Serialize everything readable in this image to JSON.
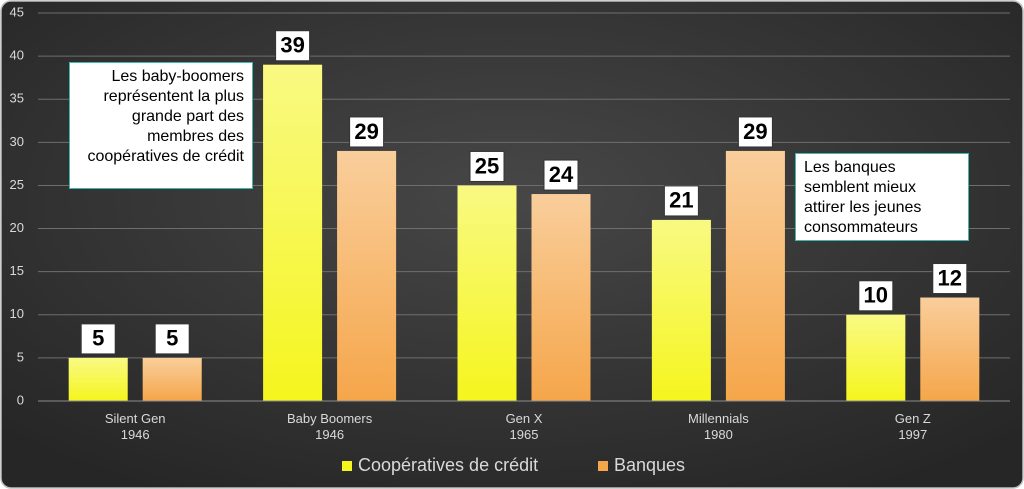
{
  "chart_data": {
    "type": "bar",
    "categories": [
      "Silent Gen\n1946",
      "Baby Boomers\n1946",
      "Gen X\n1965",
      "Millennials\n1980",
      "Gen Z\n1997"
    ],
    "series": [
      {
        "name": "Coopératives de crédit",
        "color": "#f5f51e",
        "values": [
          5,
          39,
          25,
          21,
          10
        ]
      },
      {
        "name": "Banques",
        "color": "#f5a64a",
        "values": [
          5,
          29,
          24,
          29,
          12
        ]
      }
    ],
    "ylim": [
      0,
      45
    ],
    "yticks": [
      0,
      5,
      10,
      15,
      20,
      25,
      30,
      35,
      40,
      45
    ],
    "grid": true,
    "legend": "bottom",
    "annotations": [
      "Les baby-boomers représentent la plus grande part des membres des coopératives de crédit",
      "Les banques semblent mieux attirer les jeunes consommateurs"
    ]
  }
}
